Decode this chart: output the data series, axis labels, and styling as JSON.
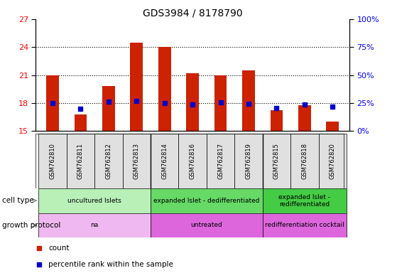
{
  "title": "GDS3984 / 8178790",
  "samples": [
    "GSM762810",
    "GSM762811",
    "GSM762812",
    "GSM762813",
    "GSM762814",
    "GSM762816",
    "GSM762817",
    "GSM762819",
    "GSM762815",
    "GSM762818",
    "GSM762820"
  ],
  "count_values": [
    21.0,
    16.8,
    19.8,
    24.5,
    24.0,
    21.2,
    21.0,
    21.5,
    17.2,
    17.8,
    16.0
  ],
  "percentile_values": [
    18.0,
    17.4,
    18.15,
    18.2,
    18.0,
    17.85,
    18.05,
    17.9,
    17.5,
    17.85,
    17.6
  ],
  "ylim_left": [
    15,
    27
  ],
  "yticks_left": [
    15,
    18,
    21,
    24,
    27
  ],
  "yticks_right": [
    0,
    25,
    50,
    75,
    100
  ],
  "ytick_right_labels": [
    "0%",
    "25%",
    "50%",
    "75%",
    "100%"
  ],
  "cell_type_groups": [
    {
      "label": "uncultured Islets",
      "start": 0,
      "end": 4,
      "color": "#b8f0b8"
    },
    {
      "label": "expanded Islet - dedifferentiated",
      "start": 4,
      "end": 8,
      "color": "#66d966"
    },
    {
      "label": "expanded Islet -\nredifferentiated",
      "start": 8,
      "end": 11,
      "color": "#44cc44"
    }
  ],
  "growth_protocol_groups": [
    {
      "label": "na",
      "start": 0,
      "end": 4,
      "color": "#f0b8f0"
    },
    {
      "label": "untreated",
      "start": 4,
      "end": 8,
      "color": "#dd66dd"
    },
    {
      "label": "redifferentiation cocktail",
      "start": 8,
      "end": 11,
      "color": "#dd66dd"
    }
  ],
  "bar_color": "#cc2200",
  "percentile_color": "#0000cc",
  "bar_width": 0.45,
  "group_boundaries": [
    3.5,
    7.5
  ],
  "dotted_yticks": [
    18,
    21,
    24
  ],
  "legend_items": [
    {
      "color": "#cc2200",
      "label": "count"
    },
    {
      "color": "#0000cc",
      "label": "percentile rank within the sample"
    }
  ]
}
